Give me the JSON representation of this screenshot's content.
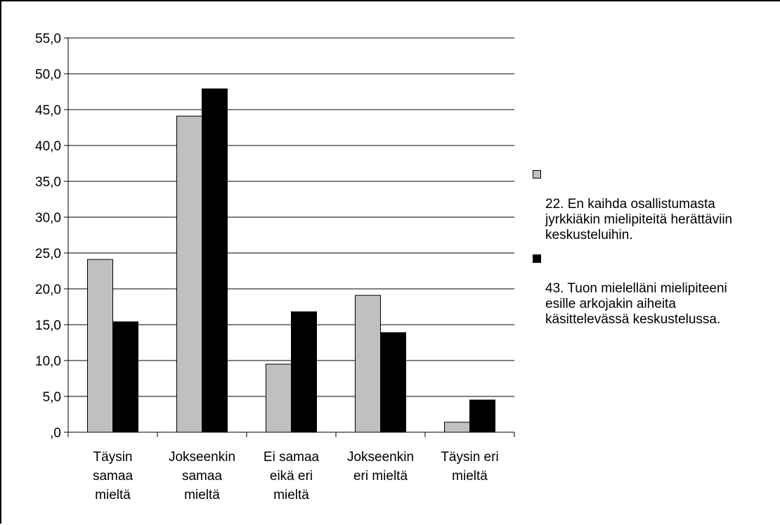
{
  "chart_data": {
    "type": "bar",
    "categories": [
      "Täysin\nsamaa\nmieltä",
      "Jokseenkin\nsamaa\nmieltä",
      "Ei samaa\neikä eri\nmieltä",
      "Jokseenkin\neri mieltä",
      "Täysin eri\nmieltä"
    ],
    "series": [
      {
        "name": "22. En kaihda osallistumasta jyrkkiäkin mielipiteitä herättäviin keskusteluihin.",
        "color": "#c0c0c0",
        "values": [
          24.1,
          44.1,
          9.5,
          19.1,
          1.4
        ]
      },
      {
        "name": "43. Tuon mielelläni mielipiteeni esille arkojakin aiheita käsittelevässä keskustelussa.",
        "color": "#000000",
        "values": [
          15.4,
          47.9,
          16.8,
          13.9,
          4.5
        ]
      }
    ],
    "yticks": [
      ",0",
      "5,0",
      "10,0",
      "15,0",
      "20,0",
      "25,0",
      "30,0",
      "35,0",
      "40,0",
      "45,0",
      "50,0",
      "55,0"
    ],
    "ylim": [
      0,
      55
    ],
    "grid": true,
    "legend_position": "right"
  },
  "legend": {
    "items": [
      {
        "label": "22. En kaihda osallistumasta\njyrkkiäkin mielipiteitä herättäviin\nkeskusteluihin.",
        "color": "#c0c0c0"
      },
      {
        "label": "43. Tuon mielelläni mielipiteeni\nesille arkojakin aiheita\nkäsittelevässä keskustelussa.",
        "color": "#000000"
      }
    ]
  }
}
